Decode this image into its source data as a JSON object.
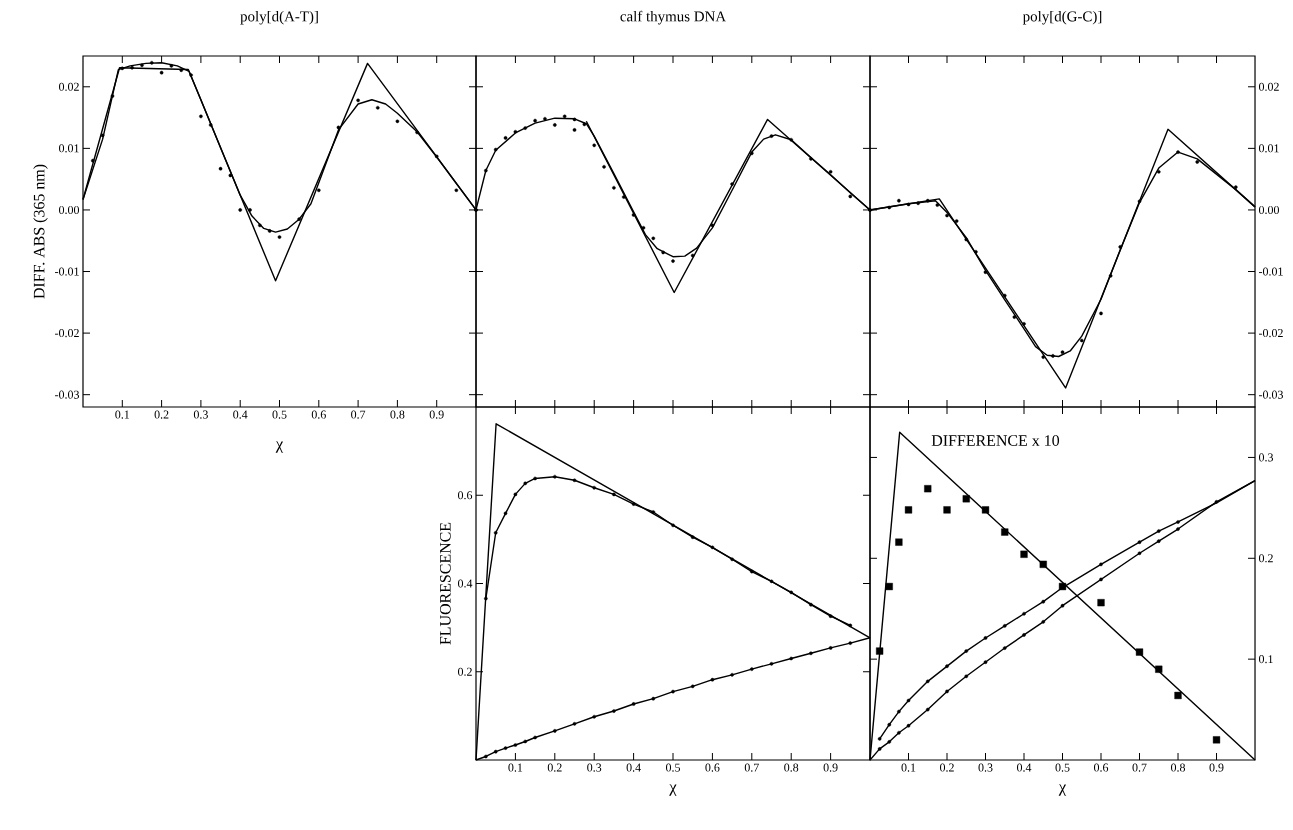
{
  "chart_data": [
    {
      "type": "scatter",
      "title": "poly[d(A-T)]",
      "xlabel": "χ",
      "ylabel": "DIFF. ABS (365 nm)",
      "xlim": [
        0,
        1
      ],
      "ylim": [
        -0.032,
        0.025
      ],
      "xticks": [
        0.1,
        0.2,
        0.3,
        0.4,
        0.5,
        0.6,
        0.7,
        0.8,
        0.9
      ],
      "yticks": [
        -0.03,
        -0.02,
        -0.01,
        {
          "value": 0,
          "label": "0.00"
        },
        0.01,
        0.02
      ],
      "series": [
        {
          "type": "scatter",
          "marker": "circle",
          "color": "#000000",
          "x": [
            0.025,
            0.05,
            0.075,
            0.1,
            0.125,
            0.15,
            0.175,
            0.2,
            0.225,
            0.25,
            0.275,
            0.3,
            0.325,
            0.35,
            0.375,
            0.4,
            0.425,
            0.45,
            0.475,
            0.5,
            0.55,
            0.6,
            0.65,
            0.7,
            0.75,
            0.8,
            0.85,
            0.9,
            0.95,
            1.0
          ],
          "values": [
            0.008,
            0.0121,
            0.0185,
            0.023,
            0.0231,
            0.0235,
            0.0239,
            0.0223,
            0.0234,
            0.0227,
            0.0219,
            0.0152,
            0.0138,
            0.0067,
            0.0056,
            0.0,
            0.0,
            -0.0025,
            -0.0034,
            -0.0044,
            -0.0015,
            0.0032,
            0.0134,
            0.0178,
            0.0166,
            0.0144,
            0.0126,
            0.0087,
            0.0032,
            0.0
          ]
        },
        {
          "type": "line",
          "color": "#000000",
          "x": [
            0,
            0.05,
            0.09,
            0.12,
            0.16,
            0.2,
            0.24,
            0.27,
            0.3,
            0.35,
            0.4,
            0.43,
            0.46,
            0.49,
            0.52,
            0.55,
            0.58,
            0.65,
            0.7,
            0.735,
            0.77,
            0.8,
            0.85,
            0.9,
            0.95,
            1.0
          ],
          "values": [
            0.0017,
            0.0115,
            0.0228,
            0.0234,
            0.0238,
            0.0239,
            0.0234,
            0.0225,
            0.0179,
            0.0101,
            0.0024,
            -0.001,
            -0.003,
            -0.0036,
            -0.0031,
            -0.0015,
            0.001,
            0.013,
            0.0172,
            0.0179,
            0.0172,
            0.0157,
            0.0127,
            0.0086,
            0.0043,
            0.0
          ]
        },
        {
          "type": "line",
          "color": "#000000",
          "x": [
            0,
            0.093,
            0.268,
            0.49,
            0.724,
            1.0
          ],
          "values": [
            0.0017,
            0.0231,
            0.0228,
            -0.0115,
            0.0238,
            0.0
          ]
        }
      ]
    },
    {
      "type": "scatter",
      "title": "calf thymus DNA",
      "tick_labels": false,
      "xlim": [
        0,
        1
      ],
      "ylim": [
        -0.032,
        0.025
      ],
      "xticks": [
        0.1,
        0.2,
        0.3,
        0.4,
        0.5,
        0.6,
        0.7,
        0.8,
        0.9
      ],
      "yticks": [
        -0.03,
        -0.02,
        -0.01,
        0,
        0.01,
        0.02
      ],
      "series": [
        {
          "type": "scatter",
          "marker": "circle",
          "color": "#000000",
          "x": [
            0,
            0.025,
            0.05,
            0.075,
            0.1,
            0.125,
            0.15,
            0.175,
            0.2,
            0.225,
            0.25,
            0.25,
            0.275,
            0.3,
            0.325,
            0.35,
            0.375,
            0.4,
            0.425,
            0.45,
            0.475,
            0.5,
            0.55,
            0.6,
            0.65,
            0.7,
            0.75,
            0.8,
            0.85,
            0.9,
            0.95,
            1.0
          ],
          "values": [
            0,
            0.0064,
            0.0098,
            0.0117,
            0.0127,
            0.0133,
            0.0145,
            0.0148,
            0.0138,
            0.0152,
            0.0147,
            0.013,
            0.0139,
            0.0105,
            0.007,
            0.0036,
            0.0021,
            -0.0008,
            -0.0029,
            -0.0046,
            -0.0069,
            -0.0083,
            -0.0074,
            -0.0025,
            0.0042,
            0.0092,
            0.012,
            0.0114,
            0.0083,
            0.0062,
            0.0022,
            0.0
          ]
        },
        {
          "type": "line",
          "color": "#000000",
          "x": [
            0,
            0.025,
            0.05,
            0.1,
            0.15,
            0.2,
            0.25,
            0.28,
            0.3,
            0.35,
            0.4,
            0.43,
            0.46,
            0.5,
            0.53,
            0.56,
            0.6,
            0.65,
            0.7,
            0.73,
            0.76,
            0.8,
            0.85,
            0.9,
            0.95,
            1.0
          ],
          "values": [
            0,
            0.0064,
            0.0097,
            0.0125,
            0.0141,
            0.0149,
            0.0148,
            0.014,
            0.012,
            0.0059,
            -0.0003,
            -0.004,
            -0.0063,
            -0.0076,
            -0.0075,
            -0.0062,
            -0.0029,
            0.0032,
            0.0094,
            0.0115,
            0.0122,
            0.0114,
            0.0085,
            0.0057,
            0.0028,
            0.0
          ]
        },
        {
          "type": "line",
          "color": "#000000",
          "x": [
            0.28,
            0.503,
            0.74,
            1.0
          ],
          "values": [
            0.0144,
            -0.0134,
            0.0147,
            0.0
          ]
        }
      ]
    },
    {
      "type": "scatter",
      "title": "poly[d(G-C)]",
      "tick_labels": "y",
      "xlim": [
        0,
        1
      ],
      "ylim": [
        -0.032,
        0.025
      ],
      "xticks": [
        0.1,
        0.2,
        0.3,
        0.4,
        0.5,
        0.6,
        0.7,
        0.8,
        0.9
      ],
      "yticks": [
        -0.03,
        -0.02,
        -0.01,
        {
          "value": 0,
          "label": "0.00"
        },
        0.01,
        0.02
      ],
      "series": [
        {
          "type": "scatter",
          "marker": "circle",
          "color": "#000000",
          "x": [
            0,
            0.05,
            0.075,
            0.1,
            0.125,
            0.15,
            0.175,
            0.2,
            0.225,
            0.25,
            0.275,
            0.3,
            0.35,
            0.375,
            0.4,
            0.45,
            0.475,
            0.5,
            0.55,
            0.6,
            0.625,
            0.65,
            0.7,
            0.75,
            0.8,
            0.85,
            0.95
          ],
          "values": [
            0,
            0.0004,
            0.0015,
            0.0009,
            0.0011,
            0.0015,
            0.0008,
            -0.0009,
            -0.0018,
            -0.0048,
            -0.0068,
            -0.0101,
            -0.0139,
            -0.0174,
            -0.0185,
            -0.0239,
            -0.0237,
            -0.0231,
            -0.0212,
            -0.0168,
            -0.0107,
            -0.006,
            0.0014,
            0.0062,
            0.0094,
            0.0078,
            0.0037
          ]
        },
        {
          "type": "line",
          "color": "#000000",
          "x": [
            0,
            0.1,
            0.17,
            0.2,
            0.25,
            0.3,
            0.35,
            0.4,
            0.43,
            0.46,
            0.49,
            0.52,
            0.55,
            0.6,
            0.65,
            0.7,
            0.75,
            0.8,
            0.85,
            0.9,
            0.95,
            1.0
          ],
          "values": [
            0,
            0.001,
            0.0015,
            -0.0004,
            -0.0045,
            -0.0098,
            -0.0146,
            -0.0193,
            -0.0222,
            -0.0236,
            -0.0238,
            -0.0229,
            -0.0205,
            -0.0145,
            -0.0065,
            0.0012,
            0.0068,
            0.0094,
            0.0083,
            0.0058,
            0.0033,
            0.0005
          ]
        },
        {
          "type": "line",
          "color": "#000000",
          "x": [
            0,
            0.18,
            0.508,
            0.774,
            1.0
          ],
          "values": [
            0,
            0.0018,
            -0.0289,
            0.0131,
            0.0005
          ]
        }
      ]
    },
    {
      "type": "scatter",
      "xlabel": "χ",
      "ylabel": "FLUORESCENCE",
      "xlim": [
        0,
        1
      ],
      "ylim": [
        0,
        0.8
      ],
      "xticks": [
        0.1,
        0.2,
        0.3,
        0.4,
        0.5,
        0.6,
        0.7,
        0.8,
        0.9
      ],
      "yticks": [
        0.2,
        0.4,
        0.6
      ],
      "series": [
        {
          "type": "scatter",
          "marker": "circle",
          "color": "#000000",
          "x": [
            0.025,
            0.05,
            0.075,
            0.1,
            0.125,
            0.15,
            0.2,
            0.25,
            0.3,
            0.35,
            0.4,
            0.45,
            0.5,
            0.55,
            0.6,
            0.65,
            0.7,
            0.75,
            0.8,
            0.85,
            0.9,
            0.95
          ],
          "values": [
            0.366,
            0.515,
            0.559,
            0.602,
            0.627,
            0.638,
            0.642,
            0.634,
            0.617,
            0.602,
            0.58,
            0.562,
            0.532,
            0.505,
            0.482,
            0.455,
            0.427,
            0.405,
            0.38,
            0.352,
            0.326,
            0.305
          ]
        },
        {
          "type": "scatter",
          "marker": "circle",
          "color": "#000000",
          "x": [
            0.025,
            0.05,
            0.075,
            0.1,
            0.125,
            0.15,
            0.2,
            0.25,
            0.3,
            0.35,
            0.4,
            0.45,
            0.5,
            0.55,
            0.6,
            0.65,
            0.7,
            0.75,
            0.8,
            0.85,
            0.9,
            0.95
          ],
          "values": [
            0.008,
            0.019,
            0.027,
            0.034,
            0.042,
            0.051,
            0.066,
            0.082,
            0.098,
            0.111,
            0.127,
            0.139,
            0.155,
            0.167,
            0.182,
            0.193,
            0.206,
            0.218,
            0.23,
            0.242,
            0.254,
            0.265
          ]
        },
        {
          "type": "line",
          "color": "#000000",
          "x": [
            0.025,
            0.05,
            0.075,
            0.1,
            0.125,
            0.15,
            0.2,
            0.25,
            0.3,
            0.35,
            0.4,
            0.45,
            0.5,
            0.55,
            0.6,
            0.65,
            0.7,
            0.75,
            0.8,
            0.85,
            0.9,
            0.95
          ],
          "values": [
            0.366,
            0.515,
            0.559,
            0.602,
            0.627,
            0.638,
            0.642,
            0.634,
            0.617,
            0.602,
            0.58,
            0.562,
            0.532,
            0.505,
            0.482,
            0.455,
            0.427,
            0.405,
            0.38,
            0.352,
            0.326,
            0.305
          ]
        },
        {
          "type": "line",
          "color": "#000000",
          "x": [
            0,
            0.025,
            0.05,
            0.075,
            0.1,
            0.125,
            0.15,
            0.2,
            0.25,
            0.3,
            0.35,
            0.4,
            0.45,
            0.5,
            0.55,
            0.6,
            0.65,
            0.7,
            0.75,
            0.8,
            0.85,
            0.9,
            0.95,
            1.0
          ],
          "values": [
            0,
            0.008,
            0.019,
            0.027,
            0.034,
            0.042,
            0.051,
            0.066,
            0.082,
            0.098,
            0.111,
            0.127,
            0.139,
            0.155,
            0.167,
            0.182,
            0.193,
            0.206,
            0.218,
            0.23,
            0.242,
            0.254,
            0.265,
            0.277
          ]
        },
        {
          "type": "line",
          "color": "#000000",
          "x": [
            0,
            0.051,
            1.0
          ],
          "values": [
            0,
            0.762,
            0.277
          ]
        }
      ]
    },
    {
      "type": "scatter",
      "xlabel": "χ",
      "annotations": [
        "DIFFERENCE  x 10"
      ],
      "xlim": [
        0,
        1
      ],
      "ylim": [
        0,
        0.35
      ],
      "xticks": [
        0.1,
        0.2,
        0.3,
        0.4,
        0.5,
        0.6,
        0.7,
        0.8,
        0.9
      ],
      "yticks": [
        0.1,
        0.2,
        0.3
      ],
      "series": [
        {
          "type": "scatter",
          "marker": "square",
          "color": "#000000",
          "x": [
            0.025,
            0.05,
            0.075,
            0.1,
            0.15,
            0.2,
            0.25,
            0.3,
            0.35,
            0.4,
            0.45,
            0.5,
            0.6,
            0.7,
            0.75,
            0.8,
            0.9
          ],
          "values": [
            0.108,
            0.172,
            0.216,
            0.248,
            0.269,
            0.248,
            0.259,
            0.248,
            0.226,
            0.204,
            0.194,
            0.172,
            0.156,
            0.107,
            0.09,
            0.064,
            0.02
          ]
        },
        {
          "type": "line",
          "color": "#000000",
          "x": [
            0,
            0.077,
            1.0
          ],
          "values": [
            0,
            0.325,
            0
          ]
        },
        {
          "type": "scatter",
          "marker": "circle",
          "color": "#000000",
          "x": [
            0.025,
            0.05,
            0.075,
            0.1,
            0.15,
            0.2,
            0.25,
            0.3,
            0.35,
            0.4,
            0.45,
            0.5,
            0.6,
            0.7,
            0.75,
            0.8
          ],
          "values": [
            0.021,
            0.035,
            0.048,
            0.059,
            0.078,
            0.093,
            0.108,
            0.121,
            0.133,
            0.145,
            0.157,
            null,
            0.194,
            0.216,
            0.227,
            0.236
          ]
        },
        {
          "type": "scatter",
          "marker": "circle",
          "color": "#000000",
          "x": [
            0.025,
            0.05,
            0.075,
            0.1,
            0.15,
            0.2,
            0.25,
            0.3,
            0.35,
            0.4,
            0.45,
            0.5,
            0.6,
            0.7,
            0.75,
            0.8,
            0.9
          ],
          "values": [
            0.011,
            0.018,
            0.027,
            0.034,
            0.05,
            0.068,
            0.083,
            0.097,
            0.111,
            0.124,
            0.137,
            0.153,
            0.179,
            0.205,
            0.217,
            0.229,
            0.256
          ]
        },
        {
          "type": "line",
          "color": "#000000",
          "x": [
            0.025,
            0.05,
            0.075,
            0.1,
            0.15,
            0.2,
            0.25,
            0.3,
            0.35,
            0.4,
            0.45,
            0.5,
            0.6,
            0.7,
            0.75,
            0.8,
            0.9,
            1.0
          ],
          "values": [
            0.021,
            0.035,
            0.048,
            0.059,
            0.078,
            0.093,
            0.108,
            0.121,
            0.133,
            0.145,
            0.157,
            0.171,
            0.194,
            0.216,
            0.227,
            0.236,
            0.255,
            0.277
          ]
        },
        {
          "type": "line",
          "color": "#000000",
          "x": [
            0,
            0.025,
            0.05,
            0.075,
            0.1,
            0.15,
            0.2,
            0.25,
            0.3,
            0.35,
            0.4,
            0.45,
            0.5,
            0.6,
            0.7,
            0.75,
            0.8,
            0.9,
            1.0
          ],
          "values": [
            0,
            0.011,
            0.018,
            0.027,
            0.034,
            0.05,
            0.068,
            0.083,
            0.097,
            0.111,
            0.124,
            0.137,
            0.153,
            0.179,
            0.205,
            0.217,
            0.229,
            0.256,
            0.277
          ]
        }
      ]
    }
  ]
}
